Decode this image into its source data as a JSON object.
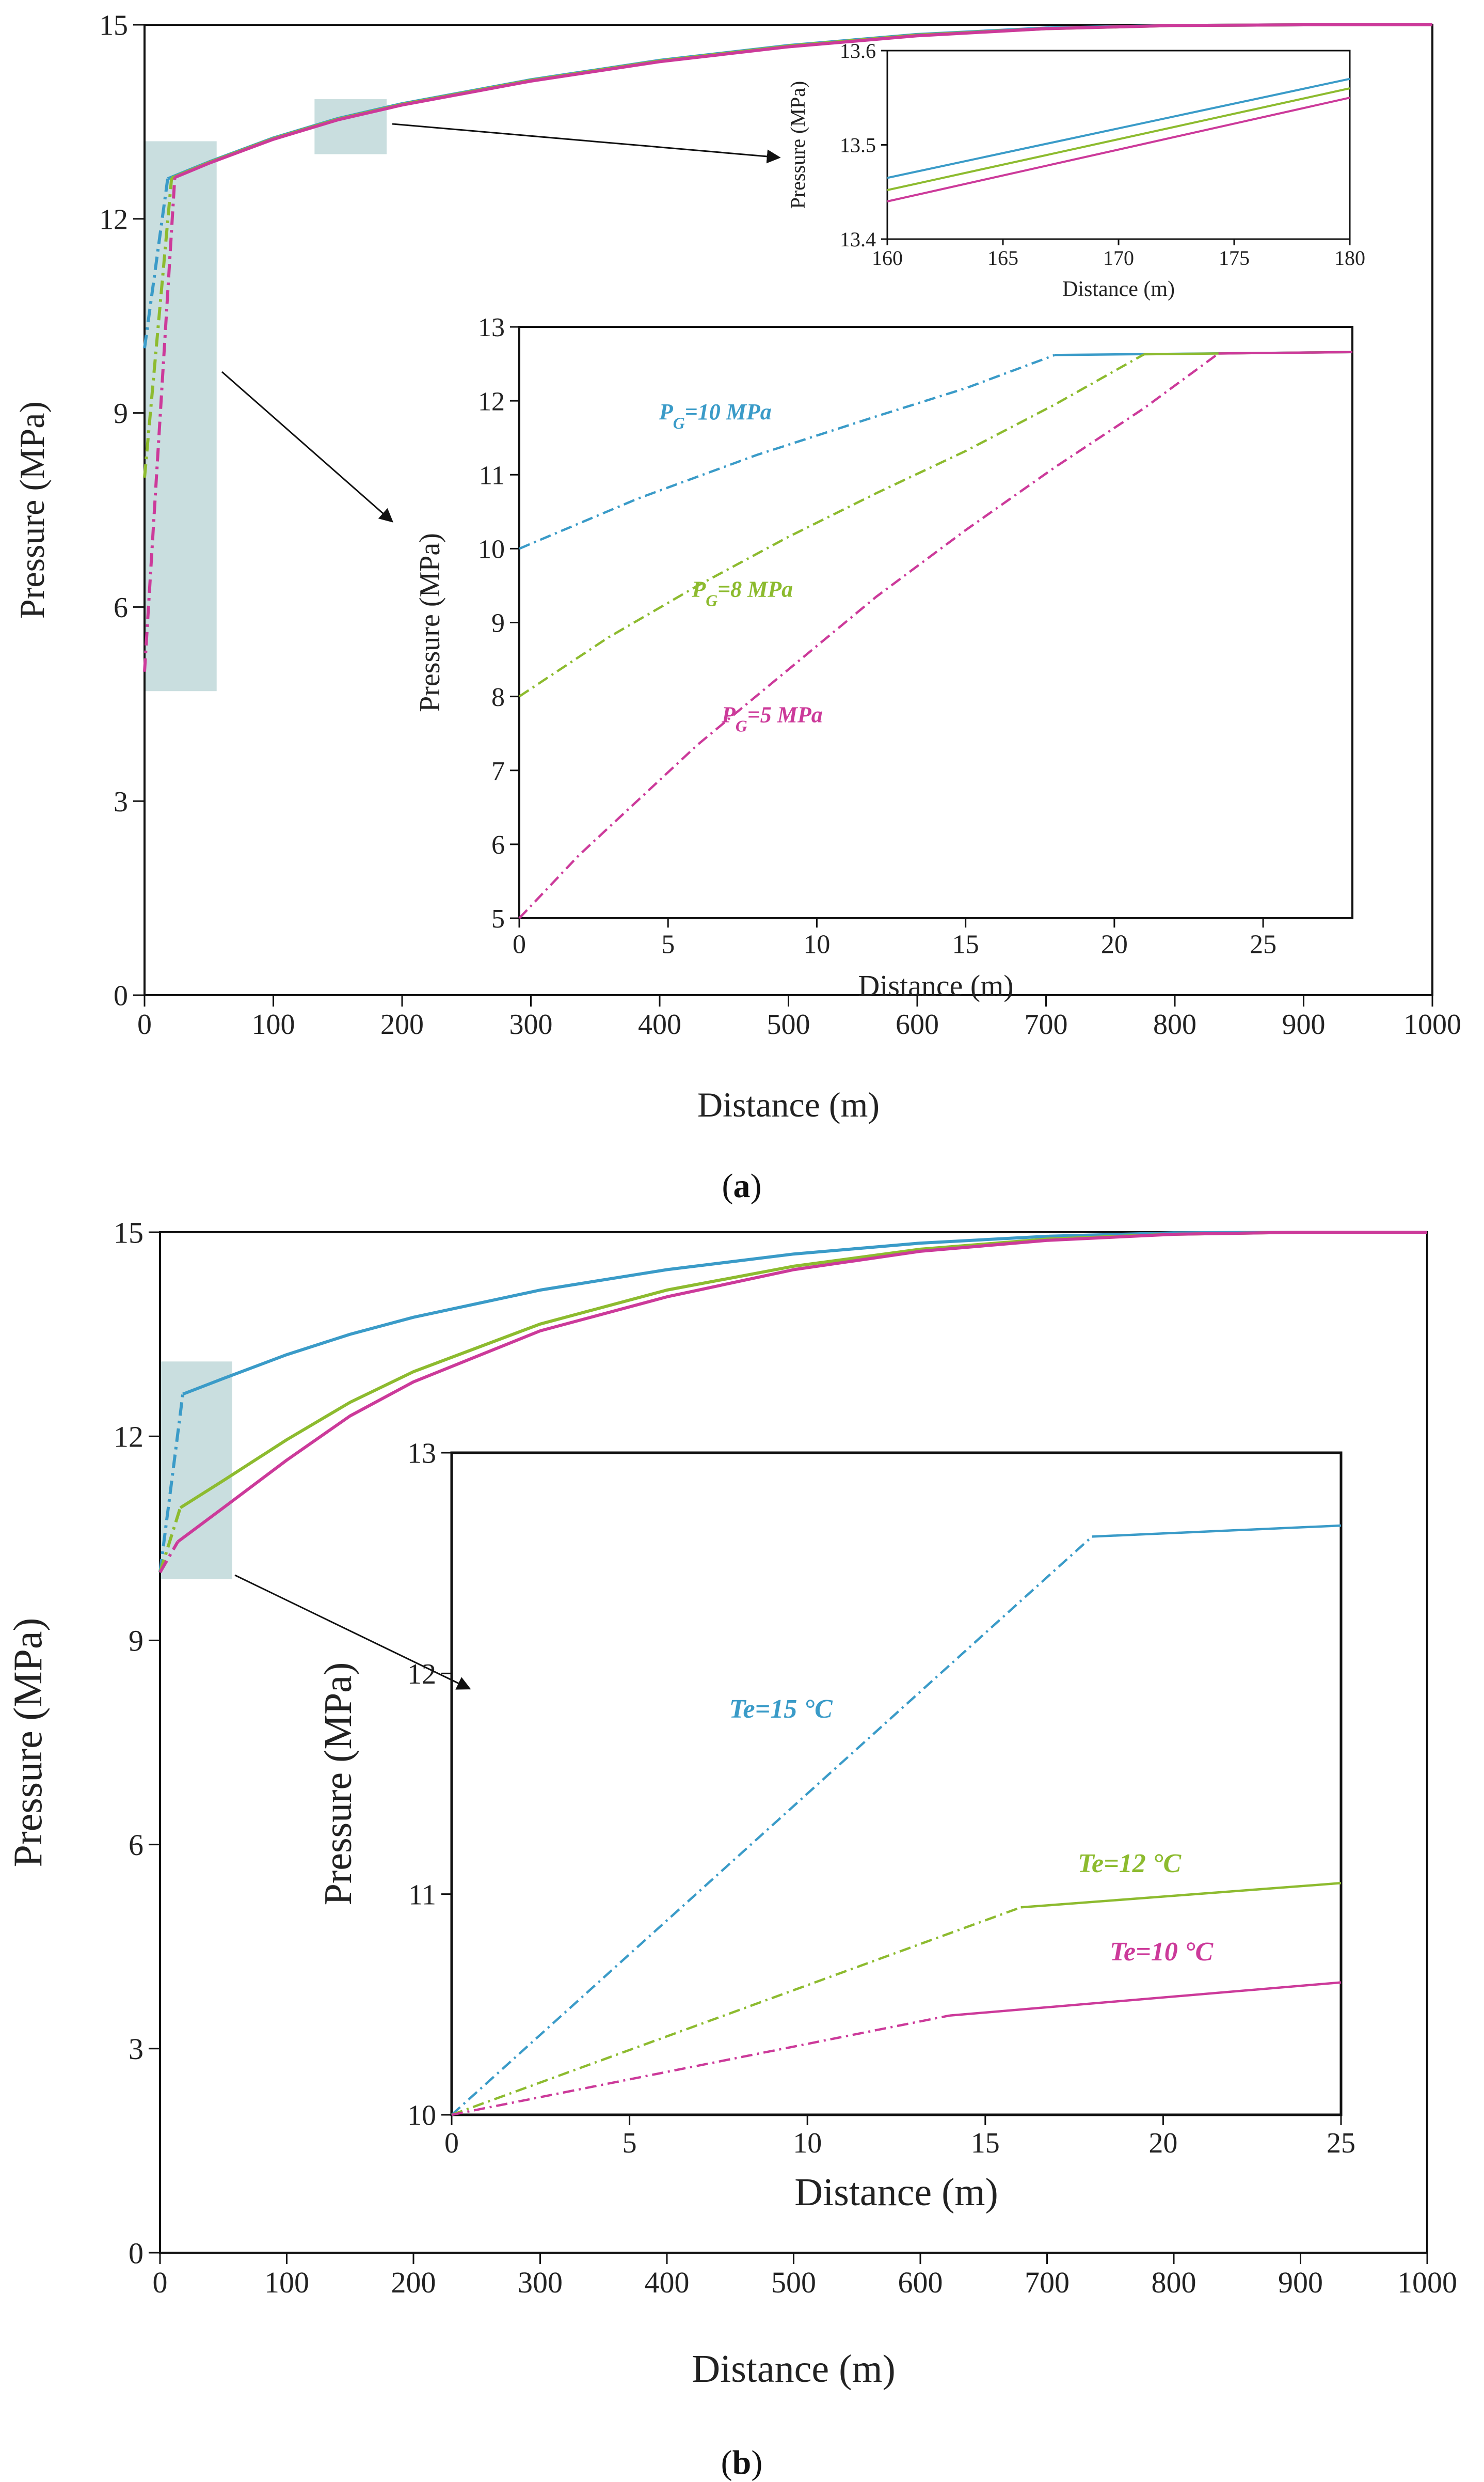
{
  "colors": {
    "blue": "#3a9bc8",
    "green": "#8dbb2f",
    "magenta": "#cc3a9a",
    "highlight": "#b7d3d4"
  },
  "chart_data": [
    {
      "id": "a-main",
      "panel_label": "a",
      "type": "line",
      "xlabel": "Distance (m)",
      "ylabel": "Pressure (MPa)",
      "xlim": [
        0,
        1000
      ],
      "ylim": [
        0,
        15
      ],
      "xticks": [
        0,
        100,
        200,
        300,
        400,
        500,
        600,
        700,
        800,
        900,
        1000
      ],
      "yticks": [
        0,
        3,
        6,
        9,
        12,
        15
      ],
      "grid": false,
      "series": [
        {
          "color_key": "blue",
          "x": [
            0,
            18,
            50,
            100,
            150,
            200,
            300,
            400,
            500,
            600,
            700,
            800,
            900,
            1000
          ],
          "y": [
            10,
            12.62,
            12.88,
            13.25,
            13.55,
            13.78,
            14.15,
            14.45,
            14.68,
            14.85,
            14.95,
            14.99,
            15,
            15
          ]
        },
        {
          "color_key": "green",
          "x": [
            0,
            21,
            50,
            100,
            150,
            200,
            300,
            400,
            500,
            600,
            700,
            800,
            900,
            1000
          ],
          "y": [
            8,
            12.63,
            12.87,
            13.24,
            13.54,
            13.77,
            14.14,
            14.44,
            14.67,
            14.84,
            14.94,
            14.99,
            15,
            15
          ]
        },
        {
          "color_key": "magenta",
          "x": [
            0,
            23.5,
            50,
            100,
            150,
            200,
            300,
            400,
            500,
            600,
            700,
            800,
            900,
            1000
          ],
          "y": [
            5,
            12.64,
            12.86,
            13.23,
            13.53,
            13.76,
            14.13,
            14.43,
            14.66,
            14.83,
            14.94,
            14.99,
            15,
            15
          ]
        }
      ],
      "highlight_regions": [
        {
          "x": [
            0,
            56
          ],
          "y": [
            4.7,
            13.2
          ]
        },
        {
          "x": [
            132,
            188
          ],
          "y": [
            13.0,
            13.85
          ]
        }
      ]
    },
    {
      "id": "a-inset-top",
      "type": "line",
      "xlabel": "Distance (m)",
      "ylabel": "Pressure (MPa)",
      "xlim": [
        160,
        180
      ],
      "ylim": [
        13.4,
        13.6
      ],
      "xticks": [
        160,
        165,
        170,
        175,
        180
      ],
      "yticks": [
        13.4,
        13.5,
        13.6
      ],
      "series": [
        {
          "color_key": "blue",
          "x": [
            160,
            180
          ],
          "y": [
            13.465,
            13.57
          ]
        },
        {
          "color_key": "green",
          "x": [
            160,
            180
          ],
          "y": [
            13.452,
            13.56
          ]
        },
        {
          "color_key": "magenta",
          "x": [
            160,
            180
          ],
          "y": [
            13.44,
            13.55
          ]
        }
      ]
    },
    {
      "id": "a-inset-bottom",
      "type": "line",
      "xlabel": "Distance (m)",
      "ylabel": "Pressure (MPa)",
      "xlim": [
        0,
        28
      ],
      "ylim": [
        5,
        13
      ],
      "xticks": [
        0,
        5,
        10,
        15,
        20,
        25
      ],
      "yticks": [
        5,
        6,
        7,
        8,
        9,
        10,
        11,
        12,
        13
      ],
      "series": [
        {
          "name": "PG=10 MPa",
          "label_main": "P",
          "label_sub": "G",
          "label_rest": "=10 MPa",
          "label_at": [
            4.7,
            11.75
          ],
          "color_key": "blue",
          "dashed": {
            "x": [
              0,
              4,
              8,
              12,
              15,
              18
            ],
            "y": [
              10,
              10.68,
              11.27,
              11.79,
              12.17,
              12.62
            ]
          },
          "solid": {
            "x": [
              18,
              28
            ],
            "y": [
              12.62,
              12.66
            ]
          }
        },
        {
          "name": "PG=8 MPa",
          "label_main": "P",
          "label_sub": "G",
          "label_rest": "=8 MPa",
          "label_at": [
            5.8,
            9.35
          ],
          "color_key": "green",
          "dashed": {
            "x": [
              0,
              3,
              6,
              9,
              12,
              15,
              18,
              21
            ],
            "y": [
              8,
              8.8,
              9.5,
              10.15,
              10.75,
              11.32,
              11.95,
              12.63
            ]
          },
          "solid": {
            "x": [
              21,
              28
            ],
            "y": [
              12.63,
              12.66
            ]
          }
        },
        {
          "name": "PG=5 MPa",
          "label_main": "P",
          "label_sub": "G",
          "label_rest": "=5 MPa",
          "label_at": [
            6.8,
            7.65
          ],
          "color_key": "magenta",
          "dashed": {
            "x": [
              0,
              2,
              4,
              6,
              9,
              12,
              15,
              18,
              21,
              23.5
            ],
            "y": [
              5,
              5.85,
              6.6,
              7.35,
              8.35,
              9.35,
              10.25,
              11.1,
              11.9,
              12.64
            ]
          },
          "solid": {
            "x": [
              23.5,
              28
            ],
            "y": [
              12.64,
              12.66
            ]
          }
        }
      ]
    },
    {
      "id": "b-main",
      "panel_label": "b",
      "type": "line",
      "xlabel": "Distance (m)",
      "ylabel": "Pressure (MPa)",
      "xlim": [
        0,
        1000
      ],
      "ylim": [
        0,
        15
      ],
      "xticks": [
        0,
        100,
        200,
        300,
        400,
        500,
        600,
        700,
        800,
        900,
        1000
      ],
      "yticks": [
        0,
        3,
        6,
        9,
        12,
        15
      ],
      "grid": false,
      "series": [
        {
          "color_key": "blue",
          "x": [
            0,
            18,
            50,
            100,
            150,
            200,
            300,
            400,
            500,
            600,
            700,
            800,
            900,
            1000
          ],
          "y": [
            10,
            12.62,
            12.85,
            13.2,
            13.5,
            13.75,
            14.15,
            14.45,
            14.68,
            14.84,
            14.94,
            14.99,
            15,
            15
          ]
        },
        {
          "color_key": "green",
          "x": [
            0,
            16,
            50,
            100,
            150,
            200,
            300,
            400,
            500,
            600,
            700,
            800,
            900,
            1000
          ],
          "y": [
            10,
            10.95,
            11.35,
            11.95,
            12.5,
            12.95,
            13.65,
            14.15,
            14.5,
            14.75,
            14.9,
            14.97,
            15,
            15
          ]
        },
        {
          "color_key": "magenta",
          "x": [
            0,
            14,
            50,
            100,
            150,
            200,
            300,
            400,
            500,
            600,
            700,
            800,
            900,
            1000
          ],
          "y": [
            10,
            10.45,
            10.95,
            11.65,
            12.3,
            12.8,
            13.55,
            14.05,
            14.45,
            14.72,
            14.88,
            14.97,
            15,
            15
          ]
        }
      ],
      "highlight_regions": [
        {
          "x": [
            0,
            57
          ],
          "y": [
            9.9,
            13.1
          ]
        }
      ]
    },
    {
      "id": "b-inset",
      "type": "line",
      "xlabel": "Distance (m)",
      "ylabel": "Pressure (MPa)",
      "xlim": [
        0,
        25
      ],
      "ylim": [
        10,
        13
      ],
      "xticks": [
        0,
        5,
        10,
        15,
        20,
        25
      ],
      "yticks": [
        10,
        11,
        12,
        13
      ],
      "series": [
        {
          "name": "Te=15 °C",
          "label_main": "Te",
          "label_rest": "=15 °C",
          "label_at": [
            7.8,
            11.8
          ],
          "color_key": "blue",
          "dashed": {
            "x": [
              0,
              18
            ],
            "y": [
              10,
              12.62
            ]
          },
          "solid": {
            "x": [
              18,
              25
            ],
            "y": [
              12.62,
              12.67
            ]
          }
        },
        {
          "name": "Te=12 °C",
          "label_main": "Te",
          "label_rest": "=12 °C",
          "label_at": [
            17.6,
            11.1
          ],
          "color_key": "green",
          "dashed": {
            "x": [
              0,
              16
            ],
            "y": [
              10,
              10.94
            ]
          },
          "solid": {
            "x": [
              16,
              25
            ],
            "y": [
              10.94,
              11.05
            ]
          }
        },
        {
          "name": "Te=10 °C",
          "label_main": "Te",
          "label_rest": "=10 °C",
          "label_at": [
            18.5,
            10.7
          ],
          "color_key": "magenta",
          "dashed": {
            "x": [
              0,
              14
            ],
            "y": [
              10,
              10.45
            ]
          },
          "solid": {
            "x": [
              14,
              25
            ],
            "y": [
              10.45,
              10.6
            ]
          }
        }
      ]
    }
  ]
}
